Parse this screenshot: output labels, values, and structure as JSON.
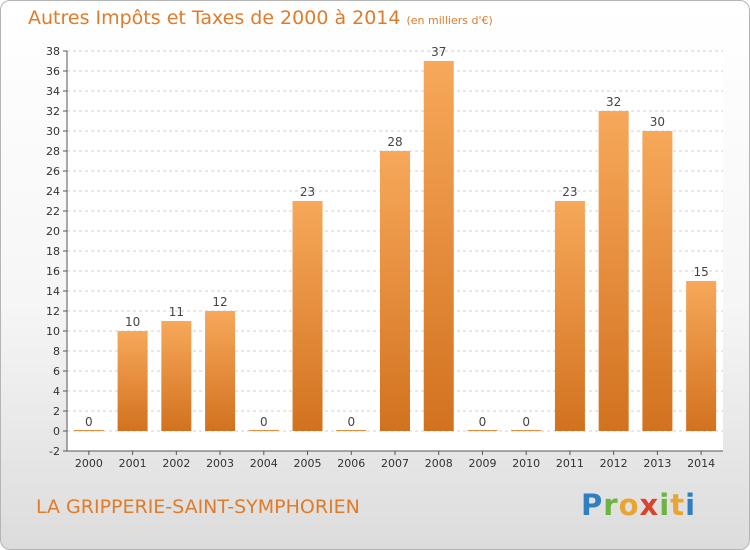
{
  "title": "Autres Impôts et Taxes de 2000 à 2014",
  "title_unit": "(en milliers d'€)",
  "commune": "LA GRIPPERIE-SAINT-SYMPHORIEN",
  "logo": {
    "text": "Proxiti"
  },
  "colors": {
    "bar_light": "#f7a85a",
    "bar_dark": "#d2721f",
    "title": "#e07b2a",
    "grid": "#d0d0d0"
  },
  "chart_data": {
    "type": "bar",
    "categories": [
      "2000",
      "2001",
      "2002",
      "2003",
      "2004",
      "2005",
      "2006",
      "2007",
      "2008",
      "2009",
      "2010",
      "2011",
      "2012",
      "2013",
      "2014"
    ],
    "values": [
      0,
      10,
      11,
      12,
      0,
      23,
      0,
      28,
      37,
      0,
      0,
      23,
      32,
      30,
      15
    ],
    "ylim": [
      -2,
      38
    ],
    "yticks": [
      -2,
      0,
      2,
      4,
      6,
      8,
      10,
      12,
      14,
      16,
      18,
      20,
      22,
      24,
      26,
      28,
      30,
      32,
      34,
      36,
      38
    ],
    "grid": true,
    "data_labels": true
  }
}
